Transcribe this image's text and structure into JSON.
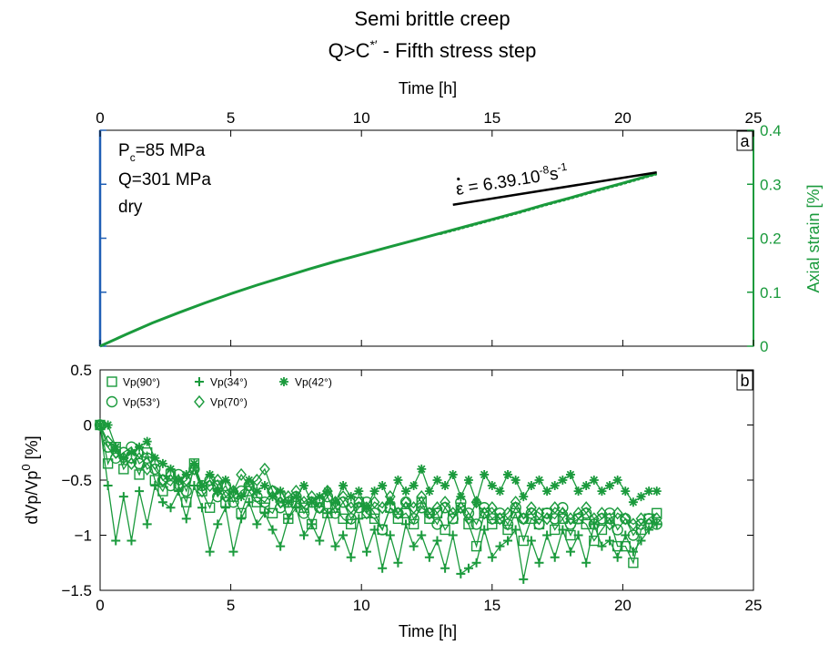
{
  "figure": {
    "title_line1": "Semi brittle creep",
    "title_line2_main": "Q>C",
    "title_line2_sup": "*′",
    "title_line2_rest": " - Fifth stress step"
  },
  "colors": {
    "green": "#1a9a3c",
    "blue": "#1f5fb5",
    "black": "#000000"
  },
  "chart_data": [
    {
      "id": "a",
      "type": "line",
      "panel_label": "a",
      "top_xlabel": "Time [h]",
      "xlim": [
        0,
        25
      ],
      "xticks": [
        0,
        5,
        10,
        15,
        20,
        25
      ],
      "ylabel_right": "Axial strain [%]",
      "ylim": [
        0,
        0.4
      ],
      "yticks": [
        0,
        0.1,
        0.2,
        0.3,
        0.4
      ],
      "grid": false,
      "annotations": {
        "line1_main": "P",
        "line1_sub": "c",
        "line1_rest": "=85 MPa",
        "line2": "Q=301 MPa",
        "line3": "dry",
        "rate_pre": "ε",
        "rate_mid": " = 6.39.10",
        "rate_sup1": "-8",
        "rate_unit": "s",
        "rate_sup2": "-1"
      },
      "series": [
        {
          "color": "#1a9a3c",
          "x": [
            0,
            0.5,
            1,
            2,
            3,
            4,
            5,
            6,
            7,
            8,
            9,
            10,
            11,
            12,
            13,
            14,
            15,
            16,
            17,
            18,
            19,
            20,
            21,
            21.3
          ],
          "y": [
            0,
            0.011,
            0.022,
            0.043,
            0.062,
            0.08,
            0.097,
            0.113,
            0.128,
            0.143,
            0.157,
            0.17,
            0.183,
            0.196,
            0.209,
            0.222,
            0.235,
            0.248,
            0.262,
            0.275,
            0.289,
            0.302,
            0.316,
            0.32
          ]
        }
      ],
      "fit_line": {
        "color": "#000000",
        "x": [
          13.5,
          21.3
        ],
        "y": [
          0.262,
          0.322
        ]
      }
    },
    {
      "id": "b",
      "type": "scatter",
      "panel_label": "b",
      "xlabel": "Time [h]",
      "xlim": [
        0,
        25
      ],
      "xticks": [
        0,
        5,
        10,
        15,
        20,
        25
      ],
      "ylabel_main": "dVp/Vp",
      "ylabel_sup": "0",
      "ylabel_unit": " [%]",
      "ylim": [
        -1.5,
        0.5
      ],
      "yticks": [
        -1.5,
        -1,
        -0.5,
        0,
        0.5
      ],
      "grid": false,
      "legend_position": "top-left",
      "series": [
        {
          "name": "Vp(90°)",
          "marker": "square",
          "color": "#1a9a3c",
          "x": [
            0,
            0.3,
            0.6,
            0.9,
            1.2,
            1.5,
            1.8,
            2.1,
            2.4,
            2.7,
            3.0,
            3.3,
            3.6,
            3.9,
            4.2,
            4.5,
            4.8,
            5.1,
            5.4,
            5.7,
            6.0,
            6.3,
            6.6,
            6.9,
            7.2,
            7.5,
            7.8,
            8.1,
            8.4,
            8.7,
            9.0,
            9.3,
            9.6,
            9.9,
            10.2,
            10.5,
            10.8,
            11.1,
            11.4,
            11.7,
            12.0,
            12.3,
            12.6,
            12.9,
            13.2,
            13.5,
            13.8,
            14.1,
            14.4,
            14.7,
            15.0,
            15.3,
            15.6,
            15.9,
            16.2,
            16.5,
            16.8,
            17.1,
            17.4,
            17.7,
            18.0,
            18.3,
            18.6,
            18.9,
            19.2,
            19.5,
            19.8,
            20.1,
            20.4,
            20.7,
            21.0,
            21.3
          ],
          "y": [
            0,
            -0.35,
            -0.2,
            -0.4,
            -0.3,
            -0.45,
            -0.25,
            -0.5,
            -0.6,
            -0.45,
            -0.55,
            -0.7,
            -0.35,
            -0.6,
            -0.75,
            -0.55,
            -0.7,
            -0.65,
            -0.8,
            -0.6,
            -0.7,
            -0.75,
            -0.8,
            -0.65,
            -0.85,
            -0.7,
            -0.75,
            -0.9,
            -0.7,
            -0.8,
            -0.75,
            -0.85,
            -0.9,
            -0.7,
            -0.8,
            -0.85,
            -0.95,
            -0.75,
            -0.85,
            -0.8,
            -0.9,
            -0.7,
            -0.85,
            -0.8,
            -0.95,
            -0.85,
            -0.75,
            -0.9,
            -1.1,
            -0.8,
            -0.9,
            -0.85,
            -0.95,
            -0.8,
            -1.05,
            -0.85,
            -0.9,
            -0.8,
            -0.95,
            -0.85,
            -1.0,
            -0.85,
            -0.9,
            -1.05,
            -0.95,
            -0.85,
            -1.1,
            -1.1,
            -1.25,
            -0.95,
            -0.85,
            -0.8
          ]
        },
        {
          "name": "Vp(53°)",
          "marker": "circle",
          "color": "#1a9a3c",
          "x": [
            0,
            0.3,
            0.6,
            0.9,
            1.2,
            1.5,
            1.8,
            2.1,
            2.4,
            2.7,
            3.0,
            3.3,
            3.6,
            3.9,
            4.2,
            4.5,
            4.8,
            5.1,
            5.4,
            5.7,
            6.0,
            6.3,
            6.6,
            6.9,
            7.2,
            7.5,
            7.8,
            8.1,
            8.4,
            8.7,
            9.0,
            9.3,
            9.6,
            9.9,
            10.2,
            10.5,
            10.8,
            11.1,
            11.4,
            11.7,
            12.0,
            12.3,
            12.6,
            12.9,
            13.2,
            13.5,
            13.8,
            14.1,
            14.4,
            14.7,
            15.0,
            15.3,
            15.6,
            15.9,
            16.2,
            16.5,
            16.8,
            17.1,
            17.4,
            17.7,
            18.0,
            18.3,
            18.6,
            18.9,
            19.2,
            19.5,
            19.8,
            20.1,
            20.4,
            20.7,
            21.0,
            21.3
          ],
          "y": [
            0,
            -0.2,
            -0.3,
            -0.25,
            -0.2,
            -0.35,
            -0.3,
            -0.4,
            -0.5,
            -0.55,
            -0.45,
            -0.6,
            -0.4,
            -0.55,
            -0.5,
            -0.65,
            -0.55,
            -0.7,
            -0.6,
            -0.55,
            -0.65,
            -0.7,
            -0.6,
            -0.75,
            -0.7,
            -0.65,
            -0.8,
            -0.7,
            -0.75,
            -0.65,
            -0.8,
            -0.7,
            -0.85,
            -0.75,
            -0.7,
            -0.8,
            -0.95,
            -0.75,
            -0.8,
            -0.7,
            -0.85,
            -0.75,
            -0.8,
            -0.9,
            -0.75,
            -0.85,
            -0.7,
            -0.8,
            -0.9,
            -0.75,
            -0.85,
            -0.8,
            -0.9,
            -0.75,
            -0.85,
            -0.8,
            -0.9,
            -0.8,
            -0.85,
            -0.75,
            -0.9,
            -0.85,
            -0.8,
            -0.9,
            -0.85,
            -0.8,
            -0.95,
            -0.85,
            -1.0,
            -0.9,
            -0.85,
            -0.9
          ]
        },
        {
          "name": "Vp(34°)",
          "marker": "plus",
          "color": "#1a9a3c",
          "x": [
            0,
            0.3,
            0.6,
            0.9,
            1.2,
            1.5,
            1.8,
            2.1,
            2.4,
            2.7,
            3.0,
            3.3,
            3.6,
            3.9,
            4.2,
            4.5,
            4.8,
            5.1,
            5.4,
            5.7,
            6.0,
            6.3,
            6.6,
            6.9,
            7.2,
            7.5,
            7.8,
            8.1,
            8.4,
            8.7,
            9.0,
            9.3,
            9.6,
            9.9,
            10.2,
            10.5,
            10.8,
            11.1,
            11.4,
            11.7,
            12.0,
            12.3,
            12.6,
            12.9,
            13.2,
            13.5,
            13.8,
            14.1,
            14.4,
            14.7,
            15.0,
            15.3,
            15.6,
            15.9,
            16.2,
            16.5,
            16.8,
            17.1,
            17.4,
            17.7,
            18.0,
            18.3,
            18.6,
            18.9,
            19.2,
            19.5,
            19.8,
            20.1,
            20.4,
            20.7,
            21.0,
            21.3
          ],
          "y": [
            0,
            -0.55,
            -1.05,
            -0.65,
            -1.05,
            -0.6,
            -0.9,
            -0.55,
            -0.7,
            -0.75,
            -0.6,
            -0.85,
            -0.55,
            -0.75,
            -1.15,
            -0.9,
            -0.75,
            -1.15,
            -0.85,
            -0.7,
            -0.9,
            -0.8,
            -0.95,
            -1.1,
            -0.85,
            -0.75,
            -1.0,
            -0.9,
            -1.05,
            -0.8,
            -1.1,
            -1.0,
            -1.2,
            -0.85,
            -1.15,
            -0.95,
            -1.3,
            -1.0,
            -1.25,
            -0.9,
            -1.1,
            -1.0,
            -1.2,
            -1.05,
            -1.3,
            -1.0,
            -1.35,
            -1.3,
            -1.25,
            -0.95,
            -1.2,
            -1.1,
            -1.05,
            -0.95,
            -1.4,
            -1.05,
            -1.25,
            -1.0,
            -1.2,
            -0.95,
            -1.15,
            -1.0,
            -1.25,
            -0.9,
            -1.1,
            -1.05,
            -1.2,
            -1.0,
            -1.15,
            -1.05,
            -0.95,
            -0.9
          ]
        },
        {
          "name": "Vp(70°)",
          "marker": "diamond",
          "color": "#1a9a3c",
          "x": [
            0,
            0.3,
            0.6,
            0.9,
            1.2,
            1.5,
            1.8,
            2.1,
            2.4,
            2.7,
            3.0,
            3.3,
            3.6,
            3.9,
            4.2,
            4.5,
            4.8,
            5.1,
            5.4,
            5.7,
            6.0,
            6.3,
            6.6,
            6.9,
            7.2,
            7.5,
            7.8,
            8.1,
            8.4,
            8.7,
            9.0,
            9.3,
            9.6,
            9.9,
            10.2,
            10.5,
            10.8,
            11.1,
            11.4,
            11.7,
            12.0,
            12.3,
            12.6,
            12.9,
            13.2,
            13.5,
            13.8,
            14.1,
            14.4,
            14.7,
            15.0,
            15.3,
            15.6,
            15.9,
            16.2,
            16.5,
            16.8,
            17.1,
            17.4,
            17.7,
            18.0,
            18.3,
            18.6,
            18.9,
            19.2,
            19.5,
            19.8,
            20.1,
            20.4,
            20.7,
            21.0,
            21.3
          ],
          "y": [
            0,
            -0.15,
            -0.25,
            -0.3,
            -0.35,
            -0.25,
            -0.4,
            -0.35,
            -0.5,
            -0.45,
            -0.55,
            -0.5,
            -0.4,
            -0.6,
            -0.55,
            -0.5,
            -0.65,
            -0.6,
            -0.45,
            -0.55,
            -0.5,
            -0.4,
            -0.6,
            -0.7,
            -0.65,
            -0.6,
            -0.7,
            -0.65,
            -0.75,
            -0.6,
            -0.7,
            -0.65,
            -0.75,
            -0.7,
            -0.8,
            -0.7,
            -0.75,
            -0.65,
            -0.8,
            -0.7,
            -0.75,
            -0.65,
            -0.8,
            -0.75,
            -0.7,
            -0.8,
            -0.75,
            -0.85,
            -0.7,
            -0.8,
            -0.75,
            -0.85,
            -0.8,
            -0.7,
            -0.85,
            -0.75,
            -0.8,
            -0.85,
            -0.75,
            -0.8,
            -0.85,
            -0.8,
            -0.75,
            -0.85,
            -0.8,
            -0.9,
            -0.8,
            -0.85,
            -0.9,
            -0.85,
            -0.9,
            -0.85
          ]
        },
        {
          "name": "Vp(42°)",
          "marker": "asterisk",
          "color": "#1a9a3c",
          "x": [
            0,
            0.3,
            0.6,
            0.9,
            1.2,
            1.5,
            1.8,
            2.1,
            2.4,
            2.7,
            3.0,
            3.3,
            3.6,
            3.9,
            4.2,
            4.5,
            4.8,
            5.1,
            5.4,
            5.7,
            6.0,
            6.3,
            6.6,
            6.9,
            7.2,
            7.5,
            7.8,
            8.1,
            8.4,
            8.7,
            9.0,
            9.3,
            9.6,
            9.9,
            10.2,
            10.5,
            10.8,
            11.1,
            11.4,
            11.7,
            12.0,
            12.3,
            12.6,
            12.9,
            13.2,
            13.5,
            13.8,
            14.1,
            14.4,
            14.7,
            15.0,
            15.3,
            15.6,
            15.9,
            16.2,
            16.5,
            16.8,
            17.1,
            17.4,
            17.7,
            18.0,
            18.3,
            18.6,
            18.9,
            19.2,
            19.5,
            19.8,
            20.1,
            20.4,
            20.7,
            21.0,
            21.3
          ],
          "y": [
            0,
            0.0,
            -0.2,
            -0.3,
            -0.25,
            -0.2,
            -0.15,
            -0.3,
            -0.35,
            -0.4,
            -0.5,
            -0.45,
            -0.35,
            -0.55,
            -0.45,
            -0.6,
            -0.5,
            -0.6,
            -0.65,
            -0.5,
            -0.6,
            -0.55,
            -0.65,
            -0.6,
            -0.7,
            -0.65,
            -0.55,
            -0.7,
            -0.65,
            -0.6,
            -0.7,
            -0.55,
            -0.65,
            -0.6,
            -0.75,
            -0.6,
            -0.55,
            -0.7,
            -0.5,
            -0.6,
            -0.55,
            -0.4,
            -0.6,
            -0.5,
            -0.55,
            -0.45,
            -0.65,
            -0.5,
            -0.7,
            -0.45,
            -0.55,
            -0.6,
            -0.45,
            -0.5,
            -0.65,
            -0.55,
            -0.5,
            -0.6,
            -0.55,
            -0.5,
            -0.45,
            -0.6,
            -0.55,
            -0.5,
            -0.6,
            -0.55,
            -0.5,
            -0.6,
            -0.7,
            -0.65,
            -0.6,
            -0.6
          ]
        }
      ]
    }
  ]
}
